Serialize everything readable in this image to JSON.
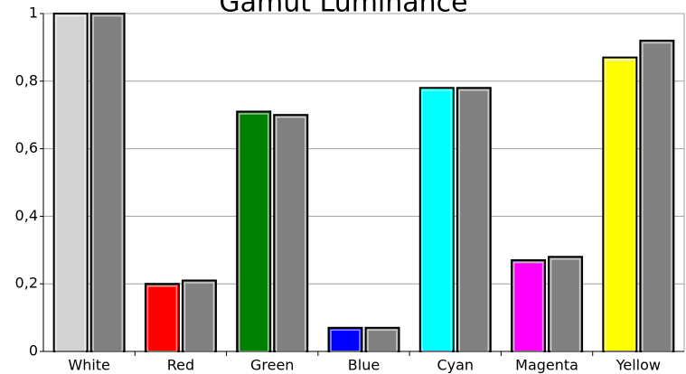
{
  "chart_data": {
    "type": "bar",
    "title": "Gamut Luminance",
    "categories": [
      "White",
      "Red",
      "Green",
      "Blue",
      "Cyan",
      "Magenta",
      "Yellow"
    ],
    "series": [
      {
        "colors": [
          "#d3d3d3",
          "#ff0000",
          "#008000",
          "#0000ff",
          "#00ffff",
          "#ff00ff",
          "#ffff00"
        ],
        "values": [
          1,
          0.2,
          0.71,
          0.07,
          0.78,
          0.27,
          0.87
        ]
      },
      {
        "color": "#808080",
        "values": [
          1,
          0.21,
          0.7,
          0.07,
          0.78,
          0.28,
          0.92
        ]
      }
    ],
    "ylim": [
      0,
      1
    ],
    "yticks": [
      0,
      {
        "value": 0.2,
        "label": "0,2"
      },
      {
        "value": 0.4,
        "label": "0,4"
      },
      {
        "value": 0.6,
        "label": "0,6"
      },
      {
        "value": 0.8,
        "label": "0,8"
      },
      1
    ],
    "grid": true
  }
}
